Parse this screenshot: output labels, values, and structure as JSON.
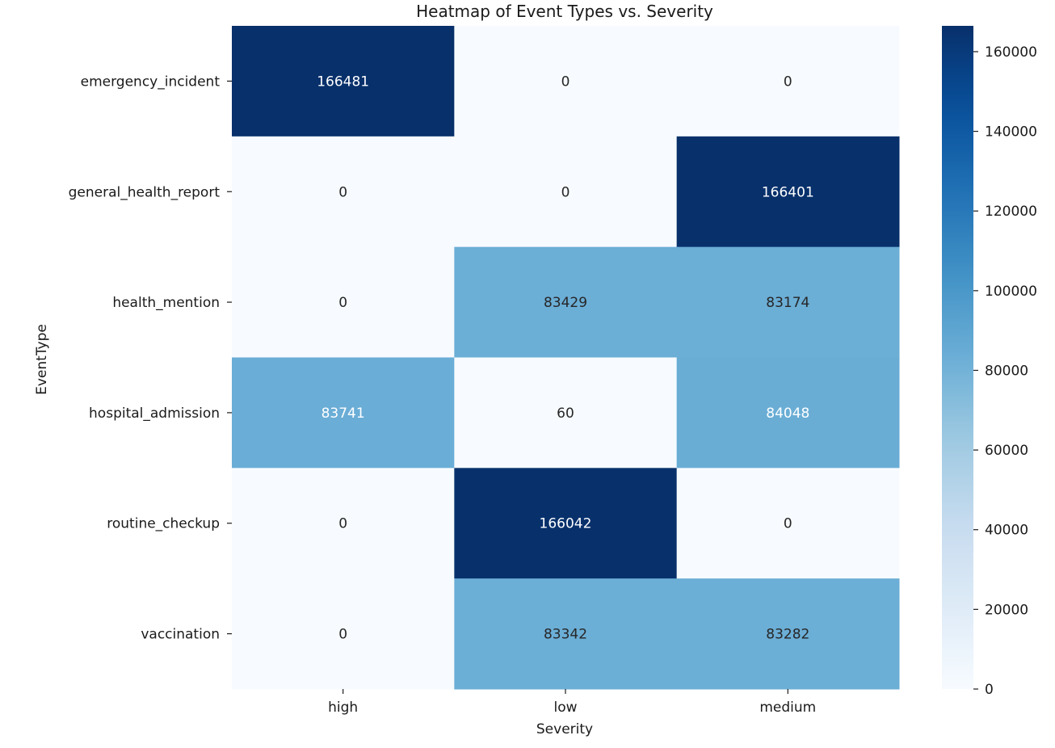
{
  "chart_data": {
    "type": "heatmap",
    "title": "Heatmap of Event Types vs. Severity",
    "xlabel": "Severity",
    "ylabel": "EventType",
    "x_categories": [
      "high",
      "low",
      "medium"
    ],
    "y_categories": [
      "emergency_incident",
      "general_health_report",
      "health_mention",
      "hospital_admission",
      "routine_checkup",
      "vaccination"
    ],
    "values": [
      [
        166481,
        0,
        0
      ],
      [
        0,
        0,
        166401
      ],
      [
        0,
        83429,
        83174
      ],
      [
        83741,
        60,
        84048
      ],
      [
        0,
        166042,
        0
      ],
      [
        0,
        83342,
        83282
      ]
    ],
    "colorbar": {
      "colormap": "Blues",
      "min": 0,
      "max": 166481,
      "ticks": [
        0,
        20000,
        40000,
        60000,
        80000,
        100000,
        120000,
        140000,
        160000
      ]
    },
    "colors": {
      "low_end": "#f7fbff",
      "high_end": "#08306b",
      "text_dark": "#262626",
      "text_light": "#ffffff"
    },
    "grid": false,
    "legend": "colorbar-right"
  }
}
